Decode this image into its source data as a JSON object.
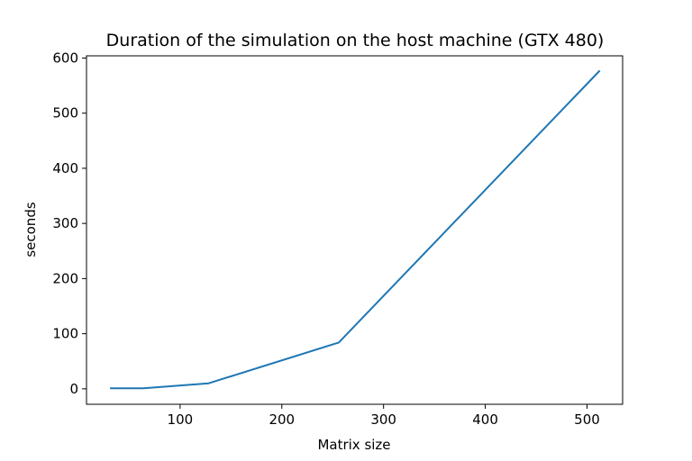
{
  "chart_data": {
    "type": "line",
    "title": "Duration of the simulation on the host machine (GTX 480)",
    "xlabel": "Matrix size",
    "ylabel": "seconds",
    "xlim": [
      8,
      535
    ],
    "ylim": [
      -28,
      604
    ],
    "xticks": [
      100,
      200,
      300,
      400,
      500
    ],
    "yticks": [
      0,
      100,
      200,
      300,
      400,
      500,
      600
    ],
    "grid": false,
    "series": [
      {
        "color": "#1f77b4",
        "x": [
          32,
          64,
          128,
          256,
          512
        ],
        "y": [
          1,
          1,
          10,
          84,
          576
        ]
      }
    ]
  }
}
